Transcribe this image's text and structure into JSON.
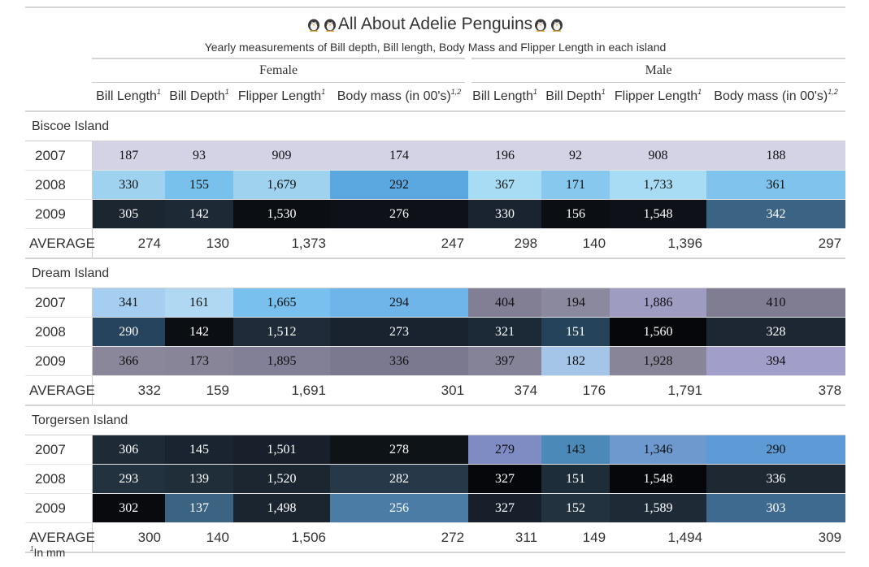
{
  "header": {
    "title": "All About Adelie Penguins",
    "subtitle": "Yearly measurements of Bill depth, Bill length, Body Mass and Flipper Length in each island",
    "title_icon": "penguin-icon"
  },
  "spanners": {
    "female": "Female",
    "male": "Male"
  },
  "columns": [
    {
      "label": "Bill Length",
      "mark": "1"
    },
    {
      "label": "Bill Depth",
      "mark": "1"
    },
    {
      "label": "Flipper Length",
      "mark": "1"
    },
    {
      "label": "Body mass (in 00's)",
      "mark": "1,2"
    },
    {
      "label": "Bill Length",
      "mark": "1"
    },
    {
      "label": "Bill Depth",
      "mark": "1"
    },
    {
      "label": "Flipper Length",
      "mark": "1"
    },
    {
      "label": "Body mass (in 00's)",
      "mark": "1,2"
    }
  ],
  "groups": [
    {
      "name": "Biscoe Island",
      "rows": [
        {
          "year": "2007",
          "values": [
            "187",
            "93",
            "909",
            "174",
            "196",
            "92",
            "908",
            "188"
          ],
          "colors": [
            "#d4d3e6",
            "#d4d3e6",
            "#d4d3e6",
            "#d4d3e6",
            "#d4d3e6",
            "#d4d3e6",
            "#d4d3e6",
            "#d4d3e6"
          ]
        },
        {
          "year": "2008",
          "values": [
            "330",
            "155",
            "1,679",
            "292",
            "367",
            "171",
            "1,733",
            "361"
          ],
          "colors": [
            "#9fd2ef",
            "#78c1ec",
            "#9fd2ef",
            "#5ba8e0",
            "#a8dcf4",
            "#86c8ee",
            "#a8dcf4",
            "#80c3ec"
          ]
        },
        {
          "year": "2009",
          "values": [
            "305",
            "142",
            "1,530",
            "276",
            "330",
            "156",
            "1,548",
            "342"
          ],
          "colors": [
            "#1c2630",
            "#1d2a36",
            "#0b0e13",
            "#0e1218",
            "#1a2430",
            "#0b0e13",
            "#0e1218",
            "#3b6384"
          ]
        }
      ],
      "average": [
        "274",
        "130",
        "1,373",
        "247",
        "298",
        "140",
        "1,396",
        "297"
      ]
    },
    {
      "name": "Dream Island",
      "rows": [
        {
          "year": "2007",
          "values": [
            "341",
            "161",
            "1,665",
            "294",
            "404",
            "194",
            "1,886",
            "410"
          ],
          "colors": [
            "#a6cef0",
            "#b0d8f3",
            "#79c0ee",
            "#70b5ea",
            "#827f94",
            "#8b899e",
            "#9f9cc2",
            "#807d92"
          ]
        },
        {
          "year": "2008",
          "values": [
            "290",
            "142",
            "1,512",
            "273",
            "321",
            "151",
            "1,560",
            "328"
          ],
          "colors": [
            "#27445e",
            "#0b0e13",
            "#1f2b38",
            "#192330",
            "#1c2a37",
            "#25445c",
            "#05070a",
            "#1c2733"
          ]
        },
        {
          "year": "2009",
          "values": [
            "366",
            "173",
            "1,895",
            "336",
            "397",
            "182",
            "1,928",
            "394"
          ],
          "colors": [
            "#8a879a",
            "#888599",
            "#828097",
            "#7b7990",
            "#858398",
            "#a5c5e8",
            "#878597",
            "#a19fc9"
          ]
        }
      ],
      "average": [
        "332",
        "159",
        "1,691",
        "301",
        "374",
        "176",
        "1,791",
        "378"
      ]
    },
    {
      "name": "Torgersen Island",
      "rows": [
        {
          "year": "2007",
          "values": [
            "306",
            "145",
            "1,501",
            "278",
            "279",
            "143",
            "1,346",
            "290"
          ],
          "colors": [
            "#1e2b36",
            "#192430",
            "#18212b",
            "#0e1318",
            "#7f8cc4",
            "#4b89b8",
            "#6d99cf",
            "#5d9ad6"
          ]
        },
        {
          "year": "2008",
          "values": [
            "293",
            "139",
            "1,520",
            "282",
            "327",
            "151",
            "1,548",
            "336"
          ],
          "colors": [
            "#22323f",
            "#202e3a",
            "#1b2631",
            "#273849",
            "#05070a",
            "#1e2d3a",
            "#05070a",
            "#1e2833"
          ]
        },
        {
          "year": "2009",
          "values": [
            "302",
            "137",
            "1,498",
            "256",
            "327",
            "152",
            "1,589",
            "303"
          ],
          "colors": [
            "#080a0e",
            "#3b6483",
            "#1a2530",
            "#4b7ca6",
            "#17202a",
            "#23323f",
            "#1e2b37",
            "#3d6a8e"
          ]
        }
      ],
      "average": [
        "300",
        "140",
        "1,506",
        "272",
        "311",
        "149",
        "1,494",
        "309"
      ]
    }
  ],
  "average_label": "AVERAGE",
  "footnote": {
    "mark": "1",
    "text": "In mm"
  }
}
